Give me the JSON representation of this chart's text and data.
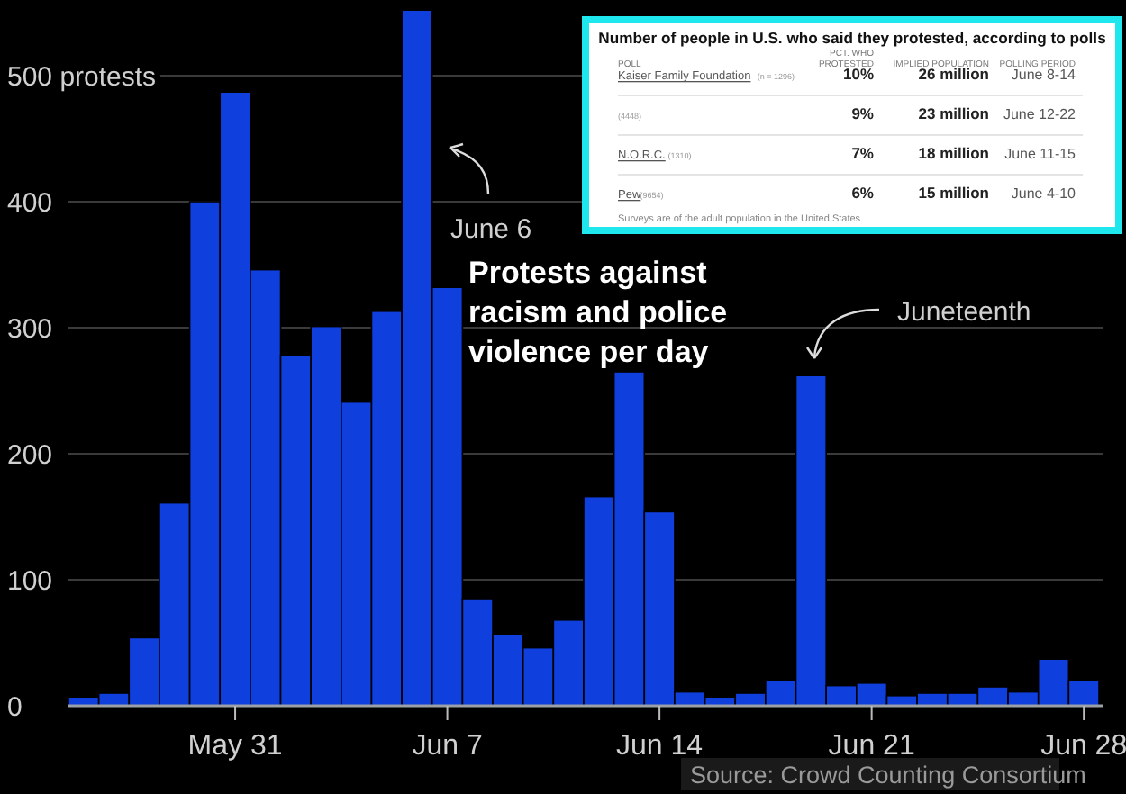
{
  "chart_data": [
    {
      "type": "bar",
      "title": "Protests against racism and police violence per day",
      "categories": [
        null,
        null,
        null,
        null,
        null,
        "May 31",
        null,
        null,
        null,
        null,
        null,
        null,
        "Jun 7",
        null,
        null,
        null,
        null,
        null,
        null,
        "Jun 14",
        null,
        null,
        null,
        null,
        null,
        null,
        "Jun 21",
        null,
        null,
        null,
        null,
        null,
        null,
        "Jun 28"
      ],
      "values": [
        7,
        10,
        54,
        161,
        400,
        487,
        346,
        278,
        301,
        241,
        313,
        552,
        332,
        85,
        57,
        46,
        68,
        166,
        265,
        154,
        11,
        7,
        10,
        20,
        262,
        16,
        18,
        8,
        10,
        10,
        15,
        11,
        37,
        20
      ],
      "color": "#0f3fdc",
      "ylim": [
        0,
        560
      ],
      "yticks": [
        0,
        100,
        200,
        300,
        400,
        {
          "value": 500,
          "label": "500 protests"
        }
      ],
      "grid": "y",
      "annotations": [
        "June 6",
        "Juneteenth",
        "Source: Crowd Counting Consortium"
      ]
    },
    {
      "type": "other",
      "title": "Number of people in U.S. who said they protested, according to polls",
      "categories": [
        "PCT. WHO PROTESTED",
        "IMPLIED POPULATION",
        "POLLING PERIOD"
      ],
      "y_categories": [
        "Kaiser Family Foundation",
        null,
        "N.O.R.C.",
        "Pew"
      ],
      "y2_categories": [
        "(n = 1296)",
        "(4448)",
        "(1310)",
        "(9654)"
      ],
      "cell_labels": [
        [
          "10%",
          "26 million",
          "June 8-14"
        ],
        [
          "9%",
          "23 million",
          "June 12-22"
        ],
        [
          "7%",
          "18 million",
          "June 11-15"
        ],
        [
          "6%",
          "15 million",
          "June 4-10"
        ]
      ],
      "annotations": [
        "POLL",
        "Surveys are of the adult population in the United States"
      ]
    }
  ]
}
